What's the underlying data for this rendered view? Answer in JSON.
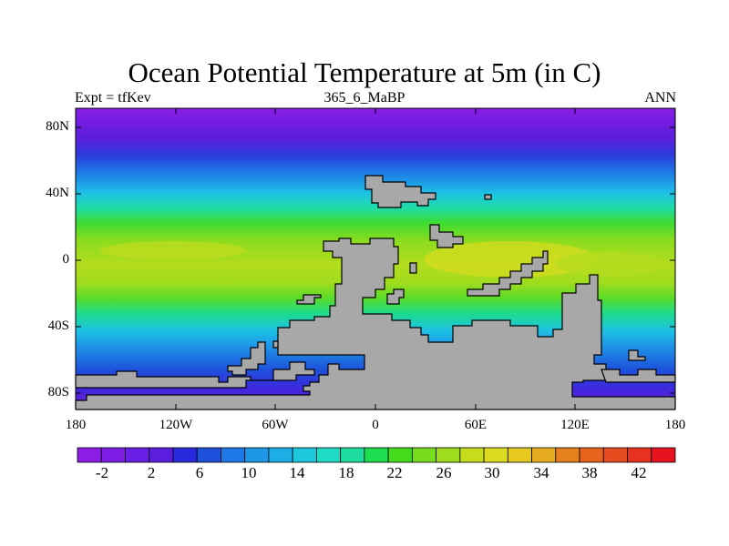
{
  "figure": {
    "title": "Ocean Potential Temperature at 5m (in C)",
    "left_subtitle": "Expt = tfKev",
    "center_subtitle": "365_6_MaBP",
    "right_subtitle": "ANN"
  },
  "axes": {
    "lat_labels": [
      "80N",
      "40N",
      "0",
      "40S",
      "80S"
    ],
    "lon_labels": [
      "180",
      "120W",
      "60W",
      "0",
      "60E",
      "120E",
      "180"
    ]
  },
  "colorbar": {
    "labels": [
      "-2",
      "2",
      "6",
      "10",
      "14",
      "18",
      "22",
      "26",
      "30",
      "34",
      "38",
      "42"
    ],
    "colors": [
      "#8c1ee6",
      "#7d1ee6",
      "#6a1ee6",
      "#5a1edc",
      "#2828dc",
      "#1e50dc",
      "#1e78e6",
      "#1e96e6",
      "#1eaee6",
      "#1ec8dc",
      "#1edcc8",
      "#1edca0",
      "#1edc50",
      "#46dc1e",
      "#78dc1e",
      "#a0dc1e",
      "#c8dc1e",
      "#dcdc1e",
      "#e6c81e",
      "#e6aa1e",
      "#e6821e",
      "#e6641e",
      "#e64b1e",
      "#e6321e",
      "#e6141e"
    ]
  },
  "map": {
    "land_color": "#a8a8a8",
    "ocean_palette": {
      "polar_cold": "#7a1edc",
      "deep_blue": "#3c28dc",
      "blue": "#1e78e6",
      "cyan": "#1ebee6",
      "teal": "#1edcb4",
      "green": "#32dc3c",
      "lime": "#78dc1e",
      "yellow_green": "#b4dc1e",
      "warm": "#d2dc1e"
    }
  }
}
